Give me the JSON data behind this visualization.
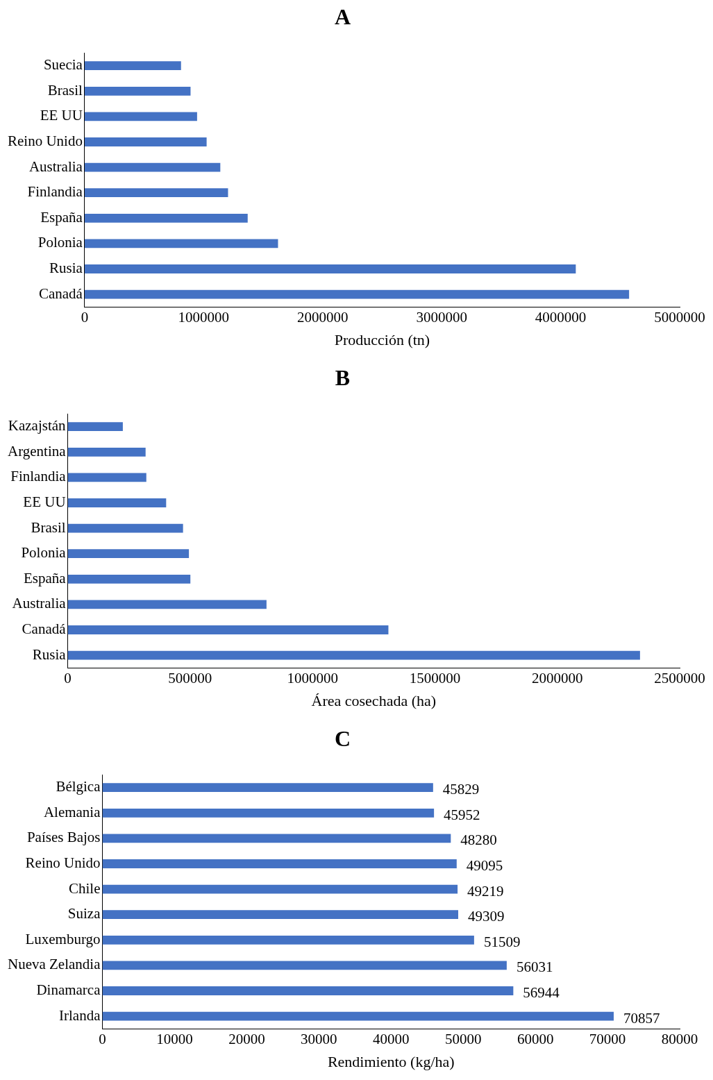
{
  "chart_data": [
    {
      "type": "bar",
      "orientation": "horizontal",
      "title": "A",
      "xlabel": "Producción (tn)",
      "categories": [
        "Suecia",
        "Brasil",
        "EE UU",
        "Reino Unido",
        "Australia",
        "Finlandia",
        "España",
        "Polonia",
        "Rusia",
        "Canadá"
      ],
      "values": [
        810000,
        890000,
        945000,
        1025000,
        1140000,
        1205000,
        1370000,
        1625000,
        4127000,
        4575000
      ],
      "color": "#4472c4",
      "xlim": [
        0,
        5000000
      ],
      "xticks": [
        0,
        1000000,
        2000000,
        3000000,
        4000000,
        5000000
      ]
    },
    {
      "type": "bar",
      "orientation": "horizontal",
      "title": "B",
      "xlabel": "Área cosechada (ha)",
      "categories": [
        "Kazajstán",
        "Argentina",
        "Finlandia",
        "EE UU",
        "Brasil",
        "Polonia",
        "España",
        "Australia",
        "Canadá",
        "Rusia"
      ],
      "values": [
        225000,
        318000,
        321000,
        402000,
        471000,
        495000,
        501000,
        812000,
        1310000,
        2338000
      ],
      "color": "#4472c4",
      "xlim": [
        0,
        2500000
      ],
      "xticks": [
        0,
        500000,
        1000000,
        1500000,
        2000000,
        2500000
      ]
    },
    {
      "type": "bar",
      "orientation": "horizontal",
      "title": "C",
      "xlabel": "Rendimiento (kg/ha)",
      "categories": [
        "Bélgica",
        "Alemania",
        "Países Bajos",
        "Reino Unido",
        "Chile",
        "Suiza",
        "Luxemburgo",
        "Nueva Zelandia",
        "Dinamarca",
        "Irlanda"
      ],
      "values": [
        45829,
        45952,
        48280,
        49095,
        49219,
        49309,
        51509,
        56031,
        56944,
        70857
      ],
      "color": "#4472c4",
      "xlim": [
        0,
        80000
      ],
      "xticks": [
        0,
        10000,
        20000,
        30000,
        40000,
        50000,
        60000,
        70000,
        80000
      ],
      "data_labels": true
    }
  ]
}
